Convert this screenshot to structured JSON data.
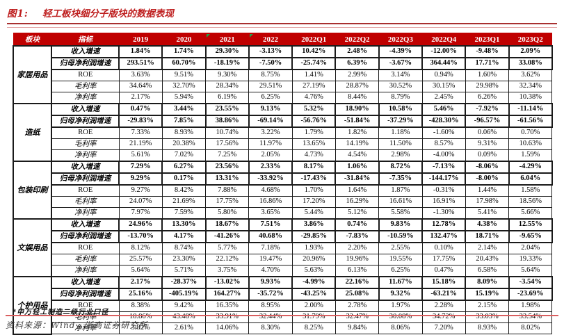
{
  "figure": {
    "label": "图1:",
    "title": "轻工板块细分子版块的数据表现"
  },
  "table": {
    "col_headers": [
      "板块",
      "指标",
      "2019",
      "2020",
      "2021",
      "2022",
      "2022Q1",
      "2022Q2",
      "2022Q3",
      "2022Q4",
      "2023Q1",
      "2023Q2"
    ],
    "flag_columns": [
      "2021",
      "2022"
    ],
    "sectors": [
      {
        "name": "家居用品",
        "rows": [
          {
            "indicator": "收入增速",
            "bold": true,
            "values": [
              "1.84%",
              "1.74%",
              "29.30%",
              "-3.13%",
              "10.42%",
              "2.48%",
              "-4.39%",
              "-12.00%",
              "-9.48%",
              "2.09%"
            ]
          },
          {
            "indicator": "归母净利润增速",
            "bold": true,
            "values": [
              "293.51%",
              "60.70%",
              "-18.19%",
              "-7.50%",
              "-25.74%",
              "6.39%",
              "-3.67%",
              "364.44%",
              "17.71%",
              "33.08%"
            ]
          },
          {
            "indicator": "ROE",
            "bold": false,
            "values": [
              "3.63%",
              "9.51%",
              "9.30%",
              "8.75%",
              "1.41%",
              "2.99%",
              "3.14%",
              "0.94%",
              "1.60%",
              "3.62%"
            ]
          },
          {
            "indicator": "毛利率",
            "bold": false,
            "values": [
              "34.64%",
              "32.70%",
              "28.34%",
              "29.51%",
              "27.19%",
              "28.87%",
              "30.52%",
              "30.15%",
              "29.98%",
              "32.34%"
            ]
          },
          {
            "indicator": "净利率",
            "bold": false,
            "values": [
              "2.17%",
              "5.94%",
              "6.19%",
              "6.25%",
              "4.76%",
              "8.44%",
              "8.79%",
              "2.45%",
              "6.26%",
              "10.38%"
            ]
          }
        ]
      },
      {
        "name": "造纸",
        "rows": [
          {
            "indicator": "收入增速",
            "bold": true,
            "values": [
              "0.47%",
              "3.44%",
              "23.55%",
              "9.13%",
              "5.32%",
              "18.90%",
              "10.58%",
              "5.46%",
              "-7.92%",
              "-11.14%"
            ]
          },
          {
            "indicator": "归母净利润增速",
            "bold": true,
            "values": [
              "-29.83%",
              "7.85%",
              "38.86%",
              "-69.14%",
              "-56.76%",
              "-51.84%",
              "-37.29%",
              "-428.30%",
              "-96.57%",
              "-61.56%"
            ]
          },
          {
            "indicator": "ROE",
            "bold": false,
            "values": [
              "7.33%",
              "8.93%",
              "10.74%",
              "3.22%",
              "1.79%",
              "1.82%",
              "1.18%",
              "-1.60%",
              "0.06%",
              "0.70%"
            ]
          },
          {
            "indicator": "毛利率",
            "bold": false,
            "values": [
              "21.19%",
              "20.38%",
              "17.56%",
              "11.97%",
              "13.65%",
              "14.19%",
              "11.50%",
              "8.57%",
              "9.31%",
              "10.63%"
            ]
          },
          {
            "indicator": "净利率",
            "bold": false,
            "values": [
              "5.61%",
              "7.02%",
              "7.25%",
              "2.05%",
              "4.73%",
              "4.54%",
              "2.98%",
              "-4.00%",
              "0.09%",
              "1.59%"
            ]
          }
        ]
      },
      {
        "name": "包装印刷",
        "rows": [
          {
            "indicator": "收入增速",
            "bold": true,
            "values": [
              "7.29%",
              "6.27%",
              "23.56%",
              "2.33%",
              "8.17%",
              "1.06%",
              "8.72%",
              "-7.13%",
              "-8.06%",
              "-4.29%"
            ]
          },
          {
            "indicator": "归母净利润增速",
            "bold": true,
            "values": [
              "9.29%",
              "0.17%",
              "13.31%",
              "-33.92%",
              "-17.43%",
              "-31.84%",
              "-7.35%",
              "-144.17%",
              "-8.00%",
              "6.04%"
            ]
          },
          {
            "indicator": "ROE",
            "bold": false,
            "values": [
              "9.27%",
              "8.42%",
              "7.88%",
              "4.68%",
              "1.70%",
              "1.64%",
              "1.87%",
              "-0.31%",
              "1.44%",
              "1.58%"
            ]
          },
          {
            "indicator": "毛利率",
            "bold": false,
            "values": [
              "24.07%",
              "21.69%",
              "17.75%",
              "16.86%",
              "17.20%",
              "16.29%",
              "16.61%",
              "16.91%",
              "17.98%",
              "18.56%"
            ]
          },
          {
            "indicator": "净利率",
            "bold": false,
            "values": [
              "7.97%",
              "7.59%",
              "5.80%",
              "3.65%",
              "5.44%",
              "5.12%",
              "5.58%",
              "-1.30%",
              "5.41%",
              "5.66%"
            ]
          }
        ]
      },
      {
        "name": "文娱用品",
        "rows": [
          {
            "indicator": "收入增速",
            "bold": true,
            "values": [
              "24.96%",
              "13.30%",
              "18.67%",
              "7.51%",
              "3.86%",
              "0.74%",
              "9.83%",
              "12.78%",
              "4.38%",
              "12.55%"
            ]
          },
          {
            "indicator": "归母净利润增速",
            "bold": true,
            "values": [
              "-13.70%",
              "4.17%",
              "-41.26%",
              "40.68%",
              "-29.85%",
              "-7.83%",
              "-10.59%",
              "132.47%",
              "18.71%",
              "-9.65%"
            ]
          },
          {
            "indicator": "ROE",
            "bold": false,
            "values": [
              "8.12%",
              "8.74%",
              "5.77%",
              "7.18%",
              "1.93%",
              "2.20%",
              "2.55%",
              "0.10%",
              "2.14%",
              "2.04%"
            ]
          },
          {
            "indicator": "毛利率",
            "bold": false,
            "values": [
              "25.57%",
              "23.30%",
              "22.12%",
              "19.47%",
              "20.96%",
              "19.96%",
              "19.55%",
              "17.75%",
              "20.43%",
              "19.33%"
            ]
          },
          {
            "indicator": "净利率",
            "bold": false,
            "values": [
              "5.64%",
              "5.71%",
              "3.75%",
              "4.70%",
              "5.63%",
              "6.13%",
              "6.25%",
              "0.47%",
              "6.58%",
              "5.64%"
            ]
          }
        ]
      },
      {
        "name": "个护用品",
        "rows": [
          {
            "indicator": "收入增速",
            "bold": true,
            "values": [
              "2.17%",
              "-28.37%",
              "-13.02%",
              "9.93%",
              "-4.99%",
              "22.16%",
              "11.67%",
              "15.18%",
              "8.09%",
              "-3.54%"
            ]
          },
          {
            "indicator": "归母净利润增速",
            "bold": true,
            "values": [
              "25.16%",
              "-405.19%",
              "164.27%",
              "-35.72%",
              "-43.25%",
              "25.08%",
              "9.32%",
              "-63.21%",
              "15.19%",
              "-23.69%"
            ]
          },
          {
            "indicator": "ROE",
            "bold": false,
            "values": [
              "8.38%",
              "9.42%",
              "16.35%",
              "8.95%",
              "2.00%",
              "2.78%",
              "1.97%",
              "2.28%",
              "2.15%",
              "1.98%"
            ]
          },
          {
            "indicator": "毛利率",
            "bold": false,
            "values": [
              "18.86%",
              "43.48%",
              "33.91%",
              "32.44%",
              "31.79%",
              "32.47%",
              "30.08%",
              "34.72%",
              "33.03%",
              "33.54%"
            ]
          },
          {
            "indicator": "净利率",
            "bold": false,
            "values": [
              "3.82%",
              "2.61%",
              "14.06%",
              "8.30%",
              "8.25%",
              "9.84%",
              "8.06%",
              "7.20%",
              "8.93%",
              "8.02%"
            ]
          }
        ]
      }
    ]
  },
  "footnote": "*申万轻工制造二级行业口径",
  "source": "资料来源：Wind，浙商证券研究所",
  "colors": {
    "header_bg": "#C00000",
    "title_red": "#BE1E1E",
    "flag_green": "#1FA04A",
    "rule_red": "#D95F5F"
  }
}
